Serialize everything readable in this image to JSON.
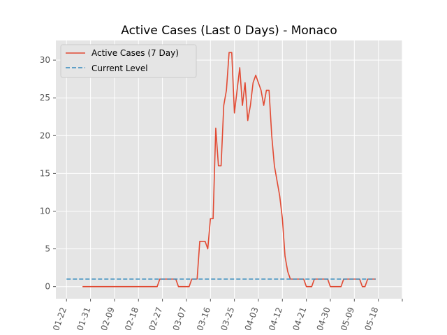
{
  "chart_data": {
    "type": "line",
    "title": "Active Cases (Last 0 Days) - Monaco",
    "xlabel": "",
    "ylabel": "",
    "x_ticks": [
      "01-22",
      "01-31",
      "02-09",
      "02-18",
      "02-27",
      "03-07",
      "03-16",
      "03-25",
      "04-03",
      "04-12",
      "04-21",
      "04-30",
      "05-09",
      "05-18"
    ],
    "y_ticks": [
      "0",
      "5",
      "10",
      "15",
      "20",
      "25",
      "30"
    ],
    "xlim": [
      "2020-01-18",
      "2020-05-27"
    ],
    "ylim": [
      -1.6,
      32.6
    ],
    "grid": true,
    "legend_position": "top-left",
    "series": [
      {
        "name": "Active Cases (7 Day)",
        "color": "#E24A33",
        "style": "solid",
        "points": [
          [
            "2020-01-28",
            0
          ],
          [
            "2020-02-25",
            0
          ],
          [
            "2020-02-26",
            1
          ],
          [
            "2020-03-03",
            1
          ],
          [
            "2020-03-04",
            0
          ],
          [
            "2020-03-08",
            0
          ],
          [
            "2020-03-09",
            1
          ],
          [
            "2020-03-11",
            1
          ],
          [
            "2020-03-12",
            6
          ],
          [
            "2020-03-14",
            6
          ],
          [
            "2020-03-15",
            5
          ],
          [
            "2020-03-16",
            9
          ],
          [
            "2020-03-17",
            9
          ],
          [
            "2020-03-18",
            21
          ],
          [
            "2020-03-19",
            16
          ],
          [
            "2020-03-20",
            16
          ],
          [
            "2020-03-21",
            24
          ],
          [
            "2020-03-22",
            26
          ],
          [
            "2020-03-23",
            31
          ],
          [
            "2020-03-24",
            31
          ],
          [
            "2020-03-25",
            23
          ],
          [
            "2020-03-26",
            26
          ],
          [
            "2020-03-27",
            29
          ],
          [
            "2020-03-28",
            24
          ],
          [
            "2020-03-29",
            27
          ],
          [
            "2020-03-30",
            22
          ],
          [
            "2020-03-31",
            24
          ],
          [
            "2020-04-01",
            27
          ],
          [
            "2020-04-02",
            28
          ],
          [
            "2020-04-03",
            27
          ],
          [
            "2020-04-04",
            26
          ],
          [
            "2020-04-05",
            24
          ],
          [
            "2020-04-06",
            26
          ],
          [
            "2020-04-07",
            26
          ],
          [
            "2020-04-08",
            20
          ],
          [
            "2020-04-09",
            16
          ],
          [
            "2020-04-10",
            14
          ],
          [
            "2020-04-11",
            12
          ],
          [
            "2020-04-12",
            9
          ],
          [
            "2020-04-13",
            4
          ],
          [
            "2020-04-14",
            2
          ],
          [
            "2020-04-15",
            1
          ],
          [
            "2020-04-20",
            1
          ],
          [
            "2020-04-21",
            0
          ],
          [
            "2020-04-23",
            0
          ],
          [
            "2020-04-24",
            1
          ],
          [
            "2020-04-29",
            1
          ],
          [
            "2020-04-30",
            0
          ],
          [
            "2020-05-04",
            0
          ],
          [
            "2020-05-05",
            1
          ],
          [
            "2020-05-11",
            1
          ],
          [
            "2020-05-12",
            0
          ],
          [
            "2020-05-13",
            0
          ],
          [
            "2020-05-14",
            1
          ],
          [
            "2020-05-17",
            1
          ]
        ]
      },
      {
        "name": "Current Level",
        "color": "#348ABD",
        "style": "dashed",
        "points": [
          [
            "2020-01-22",
            1
          ],
          [
            "2020-05-17",
            1
          ]
        ]
      }
    ]
  }
}
